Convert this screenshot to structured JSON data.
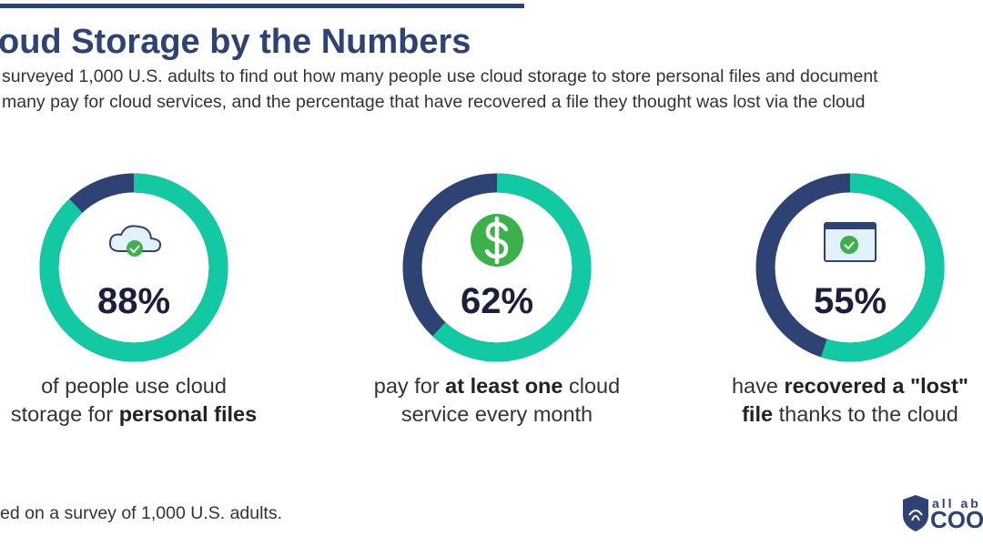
{
  "title": "oud Storage by the Numbers",
  "subtitle": [
    "surveyed 1,000 U.S. adults to find out how many people use cloud storage to store personal files and document",
    "many pay for cloud services, and the percentage that have recovered a file they thought was lost via the cloud"
  ],
  "chart_data": [
    {
      "type": "donut",
      "values": [
        88
      ],
      "value_labels": [
        "88%"
      ],
      "color": "#13c9a4",
      "track_color": "#2f4274",
      "caption": [
        [
          {
            "text": "of people use cloud"
          }
        ],
        [
          {
            "text": "storage for "
          },
          {
            "text": "personal files",
            "bold": true
          }
        ]
      ]
    },
    {
      "type": "donut",
      "values": [
        62
      ],
      "value_labels": [
        "62%"
      ],
      "color": "#13c9a4",
      "track_color": "#2f4274",
      "caption": [
        [
          {
            "text": "pay for "
          },
          {
            "text": "at least one",
            "bold": true
          },
          {
            "text": " cloud"
          }
        ],
        [
          {
            "text": "service every month"
          }
        ]
      ]
    },
    {
      "type": "donut",
      "values": [
        55
      ],
      "value_labels": [
        "55%"
      ],
      "color": "#13c9a4",
      "track_color": "#2f4274",
      "caption": [
        [
          {
            "text": "have "
          },
          {
            "text": "recovered a \"lost\"",
            "bold": true
          }
        ],
        [
          {
            "text": "file",
            "bold": true
          },
          {
            "text": " thanks to the cloud"
          }
        ]
      ]
    }
  ],
  "footer": "ed on a survey of 1,000 U.S. adults.",
  "logo": [
    "all ab",
    "COOK"
  ]
}
